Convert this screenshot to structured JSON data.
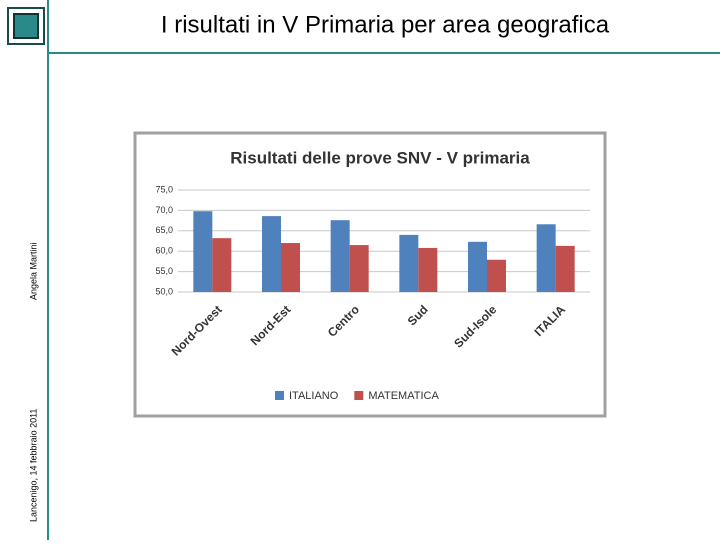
{
  "slide": {
    "title": "I risultati in V Primaria per area geografica",
    "author": "Angela Martini",
    "place_date": "Lancenigo, 14 febbraio 2011"
  },
  "chart_data": {
    "type": "bar",
    "title": "Risultati delle prove SNV - V primaria",
    "categories": [
      "Nord-Ovest",
      "Nord-Est",
      "Centro",
      "Sud",
      "Sud-Isole",
      "ITALIA"
    ],
    "series": [
      {
        "name": "ITALIANO",
        "color": "#4f81bd",
        "values": [
          69.8,
          68.6,
          67.6,
          64.0,
          62.3,
          66.6
        ]
      },
      {
        "name": "MATEMATICA",
        "color": "#c0504d",
        "values": [
          63.2,
          62.0,
          61.5,
          60.8,
          57.9,
          61.3
        ]
      }
    ],
    "ylim": [
      50,
      75
    ],
    "yticks": [
      {
        "value": 50,
        "label": "50,0"
      },
      {
        "value": 55,
        "label": "55,0"
      },
      {
        "value": 60,
        "label": "60,0"
      },
      {
        "value": 65,
        "label": "65,0"
      },
      {
        "value": 70,
        "label": "70,0"
      },
      {
        "value": 75,
        "label": "75,0"
      }
    ],
    "grid": true,
    "legend": "bottom"
  }
}
